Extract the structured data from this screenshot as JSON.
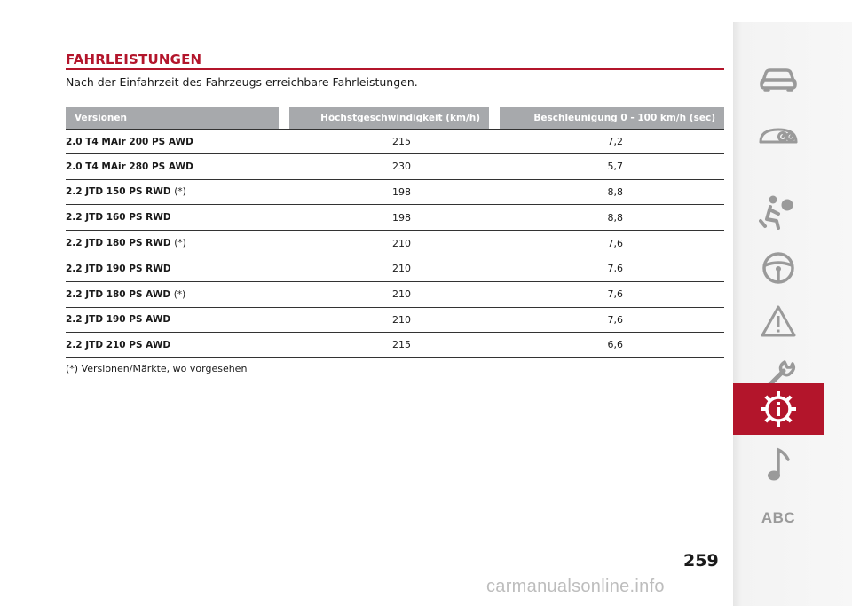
{
  "section": {
    "title": "FAHRLEISTUNGEN",
    "intro": "Nach der Einfahrzeit des Fahrzeugs erreichbare Fahrleistungen."
  },
  "table": {
    "headers": [
      "Versionen",
      "Höchstgeschwindigkeit (km/h)",
      "Beschleunigung 0 - 100 km/h (sec)"
    ],
    "rows": [
      {
        "version": "2.0 T4 MAir 200 PS AWD",
        "note": "",
        "speed": "215",
        "accel": "7,2"
      },
      {
        "version": "2.0 T4 MAir 280 PS AWD",
        "note": "",
        "speed": "230",
        "accel": "5,7"
      },
      {
        "version": "2.2 JTD 150 PS RWD",
        "note": "(*)",
        "speed": "198",
        "accel": "8,8"
      },
      {
        "version": "2.2 JTD 160 PS RWD",
        "note": "",
        "speed": "198",
        "accel": "8,8"
      },
      {
        "version": "2.2 JTD 180 PS RWD",
        "note": "(*)",
        "speed": "210",
        "accel": "7,6"
      },
      {
        "version": "2.2 JTD 190 PS RWD",
        "note": "",
        "speed": "210",
        "accel": "7,6"
      },
      {
        "version": "2.2 JTD 180 PS AWD",
        "note": "(*)",
        "speed": "210",
        "accel": "7,6"
      },
      {
        "version": "2.2 JTD 190 PS AWD",
        "note": "",
        "speed": "210",
        "accel": "7,6"
      },
      {
        "version": "2.2 JTD 210 PS AWD",
        "note": "",
        "speed": "215",
        "accel": "6,6"
      }
    ]
  },
  "footnote": "(*) Versionen/Märkte, wo vorgesehen",
  "page_number": "259",
  "sidebar": {
    "items": [
      {
        "icon": "car-icon"
      },
      {
        "icon": "dashboard-gauges-icon"
      },
      {
        "icon": "airbag-seat-icon"
      },
      {
        "icon": "steering-wheel-icon"
      },
      {
        "icon": "warning-triangle-icon"
      },
      {
        "icon": "wrench-icon"
      },
      {
        "icon": "technical-data-icon",
        "active": true
      },
      {
        "icon": "music-note-icon"
      },
      {
        "label": "ABC"
      }
    ],
    "accent": "#b3152b",
    "icon_color": "#9a9a9a"
  },
  "watermark": "carmanualsonline.info"
}
